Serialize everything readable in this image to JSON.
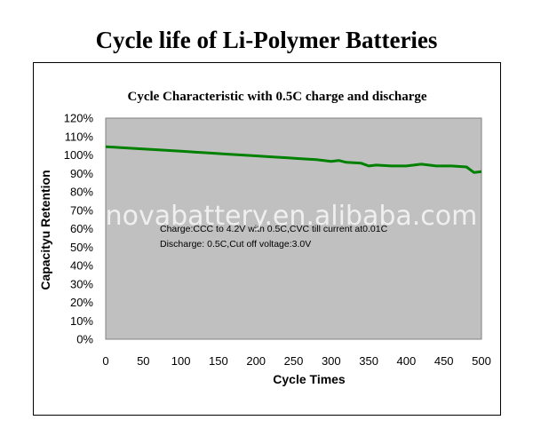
{
  "page": {
    "title": "Cycle life of Li-Polymer Batteries"
  },
  "watermark": "novabattery.en.alibaba.com",
  "chart_data": {
    "type": "line",
    "title": "Cycle Characteristic with 0.5C charge and discharge",
    "xlabel": "Cycle Times",
    "ylabel": "Capacityu Retention",
    "xlim": [
      0,
      500
    ],
    "ylim": [
      0,
      120
    ],
    "x_ticks": [
      "0",
      "50",
      "100",
      "150",
      "200",
      "250",
      "300",
      "350",
      "400",
      "450",
      "500"
    ],
    "y_ticks": [
      "0%",
      "10%",
      "20%",
      "30%",
      "40%",
      "50%",
      "60%",
      "70%",
      "80%",
      "90%",
      "100%",
      "110%",
      "120%"
    ],
    "grid": false,
    "plot_background": "#c0c0c0",
    "annotations": [
      "Charge:CCC to 4.2V with 0.5C,CVC till current at0.01C",
      "Discharge: 0.5C,Cut off voltage:3.0V"
    ],
    "series": [
      {
        "color": "#008000",
        "x": [
          0,
          20,
          40,
          60,
          80,
          100,
          120,
          140,
          160,
          180,
          200,
          220,
          240,
          260,
          280,
          300,
          310,
          320,
          340,
          350,
          360,
          380,
          400,
          420,
          440,
          460,
          480,
          490,
          500
        ],
        "y": [
          104.5,
          104,
          103.5,
          103,
          102.5,
          102,
          101.5,
          101,
          100.5,
          100,
          99.5,
          99,
          98.5,
          98,
          97.5,
          96.5,
          97,
          96,
          95.5,
          94,
          94.5,
          94,
          94,
          95,
          94,
          94,
          93.5,
          90.5,
          91
        ]
      }
    ]
  }
}
